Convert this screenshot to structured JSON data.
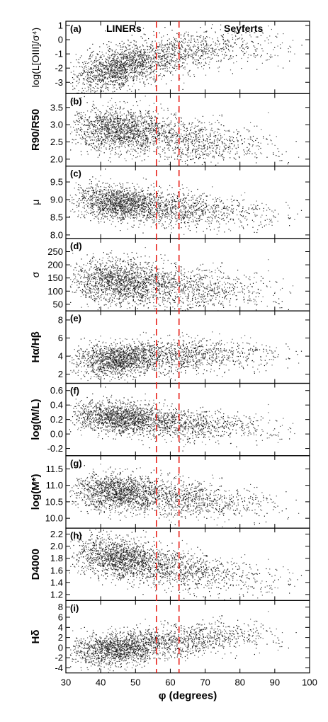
{
  "chart_data": {
    "type": "scatter",
    "x_axis": {
      "label": "φ (degrees)",
      "range": [
        30,
        100
      ],
      "ticks": [
        30,
        40,
        50,
        60,
        70,
        80,
        90,
        100
      ]
    },
    "reference_lines": {
      "x": [
        56,
        62.5
      ],
      "color": "#e8201a",
      "style": "dashed"
    },
    "region_labels": [
      "LINERs",
      "Seyferts"
    ],
    "panels": [
      {
        "tag": "(a)",
        "ylabel": "log(L[OIII]/σ⁴)",
        "ylim": [
          -3.8,
          1.3
        ],
        "yticks": [
          -3,
          -2,
          -1,
          0,
          1
        ],
        "trend": [
          [
            35,
            -2.6
          ],
          [
            45,
            -2.0
          ],
          [
            55,
            -1.4
          ],
          [
            65,
            -0.9
          ],
          [
            75,
            -0.6
          ],
          [
            85,
            -0.5
          ],
          [
            95,
            -0.5
          ]
        ],
        "spread": 0.75
      },
      {
        "tag": "(b)",
        "ylabel": "R90/R50",
        "ylim": [
          1.8,
          3.9
        ],
        "yticks": [
          2.0,
          2.5,
          3.0,
          3.5
        ],
        "trend": [
          [
            35,
            2.9
          ],
          [
            45,
            2.85
          ],
          [
            55,
            2.75
          ],
          [
            65,
            2.55
          ],
          [
            75,
            2.45
          ],
          [
            85,
            2.4
          ],
          [
            95,
            2.4
          ]
        ],
        "spread": 0.32
      },
      {
        "tag": "(c)",
        "ylabel": "μ",
        "ylim": [
          7.9,
          9.95
        ],
        "yticks": [
          8.0,
          8.5,
          9.0,
          9.5
        ],
        "trend": [
          [
            35,
            8.95
          ],
          [
            45,
            8.9
          ],
          [
            55,
            8.8
          ],
          [
            65,
            8.7
          ],
          [
            75,
            8.65
          ],
          [
            85,
            8.6
          ],
          [
            95,
            8.6
          ]
        ],
        "spread": 0.25
      },
      {
        "tag": "(d)",
        "ylabel": "σ",
        "ylim": [
          25,
          300
        ],
        "yticks": [
          50,
          100,
          150,
          200,
          250
        ],
        "trend": [
          [
            35,
            140
          ],
          [
            45,
            135
          ],
          [
            55,
            125
          ],
          [
            65,
            110
          ],
          [
            75,
            100
          ],
          [
            85,
            95
          ],
          [
            95,
            95
          ]
        ],
        "spread": 42
      },
      {
        "tag": "(e)",
        "ylabel": "Hα/Hβ",
        "ylim": [
          1,
          9
        ],
        "yticks": [
          2,
          4,
          6,
          8
        ],
        "trend": [
          [
            35,
            3.4
          ],
          [
            45,
            3.6
          ],
          [
            55,
            3.9
          ],
          [
            65,
            4.1
          ],
          [
            75,
            4.2
          ],
          [
            85,
            4.2
          ],
          [
            95,
            4.2
          ]
        ],
        "spread": 0.9
      },
      {
        "tag": "(f)",
        "ylabel": "log(M/L)",
        "ylim": [
          -0.3,
          0.7
        ],
        "yticks": [
          -0.2,
          0.0,
          0.2,
          0.4,
          0.6
        ],
        "trend": [
          [
            35,
            0.25
          ],
          [
            45,
            0.22
          ],
          [
            55,
            0.18
          ],
          [
            65,
            0.13
          ],
          [
            75,
            0.1
          ],
          [
            85,
            0.08
          ],
          [
            95,
            0.08
          ]
        ],
        "spread": 0.11
      },
      {
        "tag": "(g)",
        "ylabel": "log(M*)",
        "ylim": [
          9.7,
          11.9
        ],
        "yticks": [
          10.0,
          10.5,
          11.0,
          11.5
        ],
        "trend": [
          [
            35,
            10.8
          ],
          [
            45,
            10.8
          ],
          [
            55,
            10.7
          ],
          [
            65,
            10.6
          ],
          [
            75,
            10.5
          ],
          [
            85,
            10.45
          ],
          [
            95,
            10.45
          ]
        ],
        "spread": 0.28
      },
      {
        "tag": "(h)",
        "ylabel": "D4000",
        "ylim": [
          1.1,
          2.3
        ],
        "yticks": [
          1.2,
          1.4,
          1.6,
          1.8,
          2.0,
          2.2
        ],
        "trend": [
          [
            35,
            1.85
          ],
          [
            45,
            1.8
          ],
          [
            55,
            1.7
          ],
          [
            65,
            1.6
          ],
          [
            75,
            1.5
          ],
          [
            85,
            1.45
          ],
          [
            95,
            1.45
          ]
        ],
        "spread": 0.17
      },
      {
        "tag": "(i)",
        "ylabel": "Hδ",
        "ylim": [
          -5,
          9.3
        ],
        "yticks": [
          -4,
          -2,
          0,
          2,
          4,
          6,
          8
        ],
        "trend": [
          [
            35,
            -0.6
          ],
          [
            45,
            -0.3
          ],
          [
            55,
            0.5
          ],
          [
            65,
            1.5
          ],
          [
            75,
            2.2
          ],
          [
            85,
            2.4
          ],
          [
            95,
            2.4
          ]
        ],
        "spread": 1.6
      }
    ]
  }
}
